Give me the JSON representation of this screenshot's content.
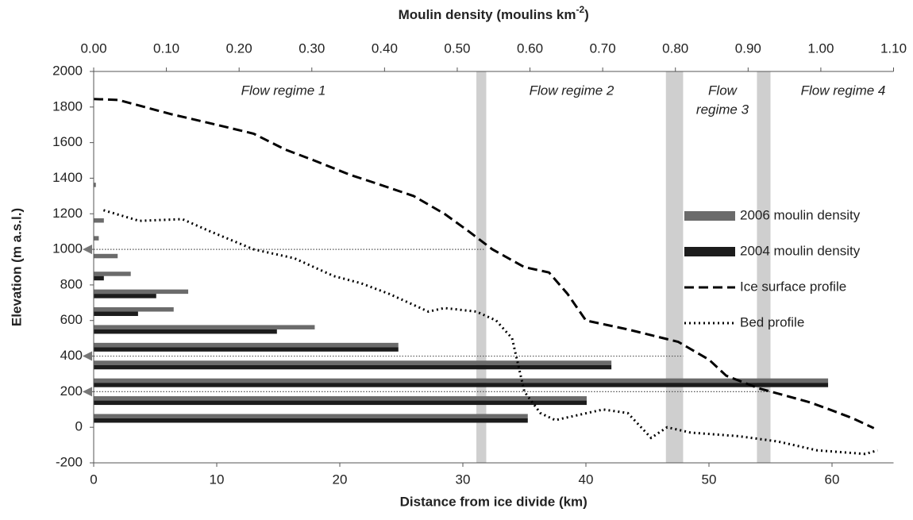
{
  "chart_data": {
    "type": "bar_line_combo",
    "xlabel": "Distance from ice divide (km)",
    "x2label": {
      "text": "Moulin density (moulins km",
      "sup": "-2",
      "tail": ")"
    },
    "ylabel": "Elevation (m a.s.l.)",
    "xlim": [
      0,
      65
    ],
    "xticks": [
      0,
      10,
      20,
      30,
      40,
      50,
      60
    ],
    "x2lim": [
      0,
      1.1
    ],
    "x2ticks": [
      {
        "value": 0,
        "label": "0.00"
      },
      {
        "value": 0.1,
        "label": "0.10"
      },
      {
        "value": 0.2,
        "label": "0.20"
      },
      {
        "value": 0.3,
        "label": "0.30"
      },
      {
        "value": 0.4,
        "label": "0.40"
      },
      {
        "value": 0.5,
        "label": "0.50"
      },
      {
        "value": 0.6,
        "label": "0.60"
      },
      {
        "value": 0.7,
        "label": "0.70"
      },
      {
        "value": 0.8,
        "label": "0.80"
      },
      {
        "value": 0.9,
        "label": "0.90"
      },
      {
        "value": 1.0,
        "label": "1.00"
      },
      {
        "value": 1.1,
        "label": "1.10"
      }
    ],
    "ylim": [
      -200,
      2000
    ],
    "yticks": [
      -200,
      0,
      200,
      400,
      600,
      800,
      1000,
      1200,
      1400,
      1600,
      1800,
      2000
    ],
    "legend": "right",
    "bar_elevations": [
      50,
      150,
      250,
      350,
      450,
      550,
      650,
      750,
      850,
      950,
      1050,
      1150,
      1250,
      1350
    ],
    "bar_series": [
      {
        "name": "2006 moulin density",
        "color": "#6b6b6b",
        "axis": "x2",
        "values": [
          0.597,
          0.678,
          1.01,
          0.712,
          0.419,
          0.304,
          0.11,
          0.13,
          0.051,
          0.033,
          0.007,
          0.014,
          0,
          0.003
        ]
      },
      {
        "name": "2004 moulin density",
        "color": "#1c1c1c",
        "axis": "x2",
        "values": [
          0.597,
          0.678,
          1.01,
          0.712,
          0.419,
          0.252,
          0.061,
          0.086,
          0.014,
          0,
          0,
          0,
          0,
          0
        ]
      }
    ],
    "line_series": [
      {
        "name": "Ice surface profile",
        "color": "#000000",
        "dash": "12 6",
        "x": [
          0,
          2,
          6.3,
          10,
          13,
          15.6,
          17.9,
          20.8,
          23,
          26,
          28.5,
          30.5,
          32.4,
          35,
          37,
          38.5,
          40,
          43.4,
          47.5,
          50,
          51.4,
          54,
          58.2,
          59.8,
          61.7,
          63.4
        ],
        "y": [
          1845,
          1840,
          1760,
          1700,
          1650,
          1560,
          1500,
          1420,
          1370,
          1300,
          1200,
          1100,
          1000,
          900,
          870,
          750,
          600,
          550,
          480,
          380,
          290,
          220,
          140,
          100,
          50,
          -5
        ]
      },
      {
        "name": "Bed profile",
        "color": "#000000",
        "dash": "2 4",
        "x": [
          0.8,
          3.7,
          7.2,
          9.5,
          13,
          16.3,
          19.5,
          21.7,
          24,
          27.2,
          28.5,
          31.1,
          32.7,
          34,
          35,
          36.3,
          37.5,
          41.4,
          43.4,
          45.3,
          46.6,
          48.5,
          52.4,
          55.6,
          58.8,
          62.7,
          63.7
        ],
        "y": [
          1220,
          1160,
          1170,
          1100,
          1000,
          950,
          850,
          810,
          750,
          650,
          670,
          650,
          600,
          500,
          200,
          80,
          40,
          100,
          80,
          -60,
          0,
          -30,
          -50,
          -80,
          -130,
          -150,
          -130
        ]
      }
    ],
    "regime_bands": [
      [
        31.1,
        31.9
      ],
      [
        46.5,
        47.9
      ],
      [
        53.9,
        55
      ]
    ],
    "regime_labels": [
      [
        "Flow regime 1"
      ],
      [
        "Flow regime 2"
      ],
      [
        "Flow",
        "regime 3"
      ],
      [
        "Flow regime 4"
      ]
    ],
    "marker_lines": [
      {
        "elevation": 1000,
        "to": 31.7
      },
      {
        "elevation": 400,
        "to": 47.9
      },
      {
        "elevation": 200,
        "to": 55
      }
    ]
  }
}
